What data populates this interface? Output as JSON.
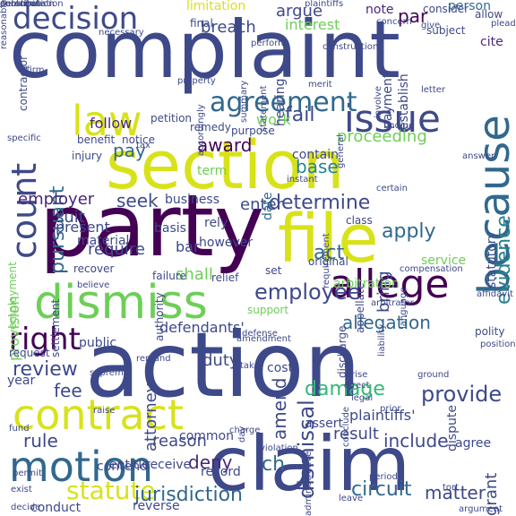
{
  "palette": {
    "dark_purple": "#440154",
    "indigo": "#482878",
    "blue": "#3e4989",
    "slate": "#31688e",
    "teal": "#26828e",
    "green_teal": "#1f9e89",
    "green": "#35b779",
    "lime": "#6ece58",
    "yellow_green": "#b5de2b",
    "yellow": "#d8e219"
  },
  "words": [
    {
      "text": "complaint",
      "color": "#3e4989",
      "rotation": 0
    },
    {
      "text": "action",
      "color": "#3e4989",
      "rotation": 0
    },
    {
      "text": "party",
      "color": "#440154",
      "rotation": 0
    },
    {
      "text": "section",
      "color": "#d8e219",
      "rotation": 0
    },
    {
      "text": "claim",
      "color": "#3e4989",
      "rotation": 0
    },
    {
      "text": "file",
      "color": "#d8e219",
      "rotation": 0
    },
    {
      "text": "because",
      "color": "#31688e",
      "rotation": 270
    },
    {
      "text": "dismiss",
      "color": "#6ece58",
      "rotation": 0
    },
    {
      "text": "contract",
      "color": "#d8e219",
      "rotation": 0
    },
    {
      "text": "allege",
      "color": "#440154",
      "rotation": 0
    },
    {
      "text": "motion",
      "color": "#31688e",
      "rotation": 0
    },
    {
      "text": "issue",
      "color": "#3e4989",
      "rotation": 0
    },
    {
      "text": "law",
      "color": "#d8e219",
      "rotation": 0
    },
    {
      "text": "count",
      "color": "#3e4989",
      "rotation": 270
    },
    {
      "text": "decision",
      "color": "#3e4989",
      "rotation": 0
    },
    {
      "text": "agreement",
      "color": "#31688e",
      "rotation": 0
    },
    {
      "text": "right",
      "color": "#440154",
      "rotation": 0
    },
    {
      "text": "statute",
      "color": "#d8e219",
      "rotation": 0
    },
    {
      "text": "jurisdiction",
      "color": "#31688e",
      "rotation": 0
    },
    {
      "text": "circuit",
      "color": "#31688e",
      "rotation": 0
    },
    {
      "text": "employee",
      "color": "#3e4989",
      "rotation": 0
    },
    {
      "text": "provide",
      "color": "#3e4989",
      "rotation": 0
    },
    {
      "text": "damage",
      "color": "#35b779",
      "rotation": 0
    },
    {
      "text": "dismissal",
      "color": "#3e4989",
      "rotation": 270
    },
    {
      "text": "evidence",
      "color": "#26828e",
      "rotation": 270
    },
    {
      "text": "determine",
      "color": "#3e4989",
      "rotation": 0
    },
    {
      "text": "award",
      "color": "#440154",
      "rotation": 0
    },
    {
      "text": "proceeding",
      "color": "#6ece58",
      "rotation": 0
    },
    {
      "text": "review",
      "color": "#3e4989",
      "rotation": 0
    },
    {
      "text": "apply",
      "color": "#31688e",
      "rotation": 0
    },
    {
      "text": "matter",
      "color": "#3e4989",
      "rotation": 0
    },
    {
      "text": "deny",
      "color": "#482878",
      "rotation": 0
    },
    {
      "text": "fail",
      "color": "#3e4989",
      "rotation": 0
    },
    {
      "text": "pay",
      "color": "#31688e",
      "rotation": 0
    },
    {
      "text": "seek",
      "color": "#3e4989",
      "rotation": 0
    },
    {
      "text": "fee",
      "color": "#3e4989",
      "rotation": 0
    },
    {
      "text": "act",
      "color": "#31688e",
      "rotation": 0
    },
    {
      "text": "base",
      "color": "#26828e",
      "rotation": 0
    },
    {
      "text": "rule",
      "color": "#3e4989",
      "rotation": 0
    },
    {
      "text": "reason",
      "color": "#3e4989",
      "rotation": 0
    },
    {
      "text": "amend",
      "color": "#3e4989",
      "rotation": 270
    },
    {
      "text": "allegation",
      "color": "#31688e",
      "rotation": 0
    },
    {
      "text": "include",
      "color": "#3e4989",
      "rotation": 0
    },
    {
      "text": "require",
      "color": "#3e4989",
      "rotation": 0
    },
    {
      "text": "enter",
      "color": "#3e4989",
      "rotation": 0
    },
    {
      "text": "argue",
      "color": "#3e4989",
      "rotation": 0
    },
    {
      "text": "breach",
      "color": "#3e4989",
      "rotation": 0
    },
    {
      "text": "interest",
      "color": "#6ece58",
      "rotation": 0
    },
    {
      "text": "pursuant",
      "color": "#31688e",
      "rotation": 270
    },
    {
      "text": "employer",
      "color": "#482878",
      "rotation": 0
    },
    {
      "text": "suit",
      "color": "#3e4989",
      "rotation": 0
    },
    {
      "text": "present",
      "color": "#3e4989",
      "rotation": 0
    },
    {
      "text": "bring",
      "color": "#3e4989",
      "rotation": 270
    },
    {
      "text": "shall",
      "color": "#6ece58",
      "rotation": 0
    },
    {
      "text": "ch",
      "color": "#31688e",
      "rotation": 0
    },
    {
      "text": "duty",
      "color": "#3e4989",
      "rotation": 0
    },
    {
      "text": "attorney",
      "color": "#3e4989",
      "rotation": 270
    },
    {
      "text": "result",
      "color": "#3e4989",
      "rotation": 0
    },
    {
      "text": "follow",
      "color": "#482878",
      "rotation": 0
    },
    {
      "text": "term",
      "color": "#6ece58",
      "rotation": 0
    },
    {
      "text": "work",
      "color": "#6ece58",
      "rotation": 0
    },
    {
      "text": "note",
      "color": "#482878",
      "rotation": 0
    },
    {
      "text": "par",
      "color": "#440154",
      "rotation": 0
    },
    {
      "text": "person",
      "color": "#31688e",
      "rotation": 0
    },
    {
      "text": "limitation",
      "color": "#d8e219",
      "rotation": 0
    },
    {
      "text": "provision",
      "color": "#6ece58",
      "rotation": 270
    },
    {
      "text": "grant",
      "color": "#3e4989",
      "rotation": 270
    },
    {
      "text": "employment",
      "color": "#6ece58",
      "rotation": 270
    },
    {
      "text": "hearing",
      "color": "#3e4989",
      "rotation": 270
    },
    {
      "text": "contain",
      "color": "#3e4989",
      "rotation": 0
    },
    {
      "text": "date",
      "color": "#31688e",
      "rotation": 270
    },
    {
      "text": "arbitration",
      "color": "#6ece58",
      "rotation": 0
    },
    {
      "text": "defendants'",
      "color": "#3e4989",
      "rotation": 0
    },
    {
      "text": "plaintiffs'",
      "color": "#3e4989",
      "rotation": 0
    },
    {
      "text": "conduct",
      "color": "#3e4989",
      "rotation": 0
    },
    {
      "text": "reverse",
      "color": "#3e4989",
      "rotation": 0
    },
    {
      "text": "agree",
      "color": "#3e4989",
      "rotation": 0
    },
    {
      "text": "cite",
      "color": "#482878",
      "rotation": 0
    },
    {
      "text": "payment",
      "color": "#3e4989",
      "rotation": 270
    },
    {
      "text": "establish",
      "color": "#3e4989",
      "rotation": 270
    },
    {
      "text": "statutory",
      "color": "#3e4989",
      "rotation": 270
    },
    {
      "text": "dispute",
      "color": "#3e4989",
      "rotation": 270
    },
    {
      "text": "assert",
      "color": "#3e4989",
      "rotation": 0
    },
    {
      "text": "entitle",
      "color": "#3e4989",
      "rotation": 0
    },
    {
      "text": "receive",
      "color": "#3e4989",
      "rotation": 0
    },
    {
      "text": "record",
      "color": "#3e4989",
      "rotation": 0
    },
    {
      "text": "contend",
      "color": "#3e4989",
      "rotation": 0
    },
    {
      "text": "common",
      "color": "#3e4989",
      "rotation": 0
    },
    {
      "text": "cost",
      "color": "#3e4989",
      "rotation": 0
    },
    {
      "text": "bar",
      "color": "#3e4989",
      "rotation": 0
    },
    {
      "text": "basis",
      "color": "#3e4989",
      "rotation": 0
    },
    {
      "text": "rely",
      "color": "#3e4989",
      "rotation": 0
    },
    {
      "text": "however",
      "color": "#3e4989",
      "rotation": 0
    },
    {
      "text": "failure",
      "color": "#3e4989",
      "rotation": 0
    },
    {
      "text": "relief",
      "color": "#3e4989",
      "rotation": 0
    },
    {
      "text": "set",
      "color": "#3e4989",
      "rotation": 0
    },
    {
      "text": "support",
      "color": "#6ece58",
      "rotation": 0
    },
    {
      "text": "request",
      "color": "#3e4989",
      "rotation": 0
    },
    {
      "text": "public",
      "color": "#3e4989",
      "rotation": 0
    },
    {
      "text": "year",
      "color": "#3e4989",
      "rotation": 0
    },
    {
      "text": "final",
      "color": "#3e4989",
      "rotation": 0
    },
    {
      "text": "benefit",
      "color": "#3e4989",
      "rotation": 0
    },
    {
      "text": "notice",
      "color": "#3e4989",
      "rotation": 0
    },
    {
      "text": "purpose",
      "color": "#3e4989",
      "rotation": 0
    },
    {
      "text": "remedy",
      "color": "#3e4989",
      "rotation": 0
    },
    {
      "text": "petition",
      "color": "#3e4989",
      "rotation": 0
    },
    {
      "text": "injury",
      "color": "#3e4989",
      "rotation": 0
    },
    {
      "text": "business",
      "color": "#3e4989",
      "rotation": 0
    },
    {
      "text": "material",
      "color": "#3e4989",
      "rotation": 0
    },
    {
      "text": "service",
      "color": "#6ece58",
      "rotation": 0
    },
    {
      "text": "class",
      "color": "#3e4989",
      "rotation": 0
    },
    {
      "text": "original",
      "color": "#3e4989",
      "rotation": 0
    },
    {
      "text": "discharge",
      "color": "#3e4989",
      "rotation": 270
    },
    {
      "text": "appellate",
      "color": "#3e4989",
      "rotation": 270
    },
    {
      "text": "recover",
      "color": "#3e4989",
      "rotation": 0
    },
    {
      "text": "settlement",
      "color": "#3e4989",
      "rotation": 270
    },
    {
      "text": "authority",
      "color": "#3e4989",
      "rotation": 270
    },
    {
      "text": "consider",
      "color": "#3e4989",
      "rotation": 0
    },
    {
      "text": "allow",
      "color": "#3e4989",
      "rotation": 0
    },
    {
      "text": "subject",
      "color": "#3e4989",
      "rotation": 0
    },
    {
      "text": "give",
      "color": "#3e4989",
      "rotation": 0
    },
    {
      "text": "plead",
      "color": "#3e4989",
      "rotation": 0
    },
    {
      "text": "answer",
      "color": "#3e4989",
      "rotation": 0
    },
    {
      "text": "construction",
      "color": "#3e4989",
      "rotation": 0
    },
    {
      "text": "merit",
      "color": "#3e4989",
      "rotation": 0
    },
    {
      "text": "involve",
      "color": "#3e4989",
      "rotation": 270
    },
    {
      "text": "statement",
      "color": "#3e4989",
      "rotation": 270
    },
    {
      "text": "summary",
      "color": "#3e4989",
      "rotation": 270
    },
    {
      "text": "accordingly",
      "color": "#3e4989",
      "rotation": 270
    },
    {
      "text": "contractor",
      "color": "#3e4989",
      "rotation": 270
    },
    {
      "text": "affirm",
      "color": "#3e4989",
      "rotation": 0
    },
    {
      "text": "letter",
      "color": "#3e4989",
      "rotation": 0
    },
    {
      "text": "general",
      "color": "#3e4989",
      "rotation": 270
    },
    {
      "text": "certain",
      "color": "#3e4989",
      "rotation": 0
    },
    {
      "text": "instant",
      "color": "#3e4989",
      "rotation": 0
    },
    {
      "text": "tax",
      "color": "#3e4989",
      "rotation": 0
    },
    {
      "text": "property",
      "color": "#3e4989",
      "rotation": 0
    },
    {
      "text": "requirement",
      "color": "#3e4989",
      "rotation": 270
    },
    {
      "text": "affidavit",
      "color": "#3e4989",
      "rotation": 0
    },
    {
      "text": "language",
      "color": "#3e4989",
      "rotation": 270
    },
    {
      "text": "compensation",
      "color": "#3e4989",
      "rotation": 0
    },
    {
      "text": "arbitrator",
      "color": "#3e4989",
      "rotation": 0
    },
    {
      "text": "defense",
      "color": "#3e4989",
      "rotation": 0
    },
    {
      "text": "remand",
      "color": "#3e4989",
      "rotation": 0
    },
    {
      "text": "supreme",
      "color": "#3e4989",
      "rotation": 0
    },
    {
      "text": "raise",
      "color": "#3e4989",
      "rotation": 0
    },
    {
      "text": "charge",
      "color": "#3e4989",
      "rotation": 0
    },
    {
      "text": "amendment",
      "color": "#3e4989",
      "rotation": 0
    },
    {
      "text": "take",
      "color": "#3e4989",
      "rotation": 0
    },
    {
      "text": "arise",
      "color": "#3e4989",
      "rotation": 0
    },
    {
      "text": "direct",
      "color": "#3e4989",
      "rotation": 0
    },
    {
      "text": "legal",
      "color": "#3e4989",
      "rotation": 0
    },
    {
      "text": "prior",
      "color": "#3e4989",
      "rotation": 0
    },
    {
      "text": "conclude",
      "color": "#3e4989",
      "rotation": 270
    },
    {
      "text": "ground",
      "color": "#3e4989",
      "rotation": 0
    },
    {
      "text": "polity",
      "color": "#3e4989",
      "rotation": 0
    },
    {
      "text": "position",
      "color": "#3e4989",
      "rotation": 0
    },
    {
      "text": "liability",
      "color": "#3e4989",
      "rotation": 270
    },
    {
      "text": "day",
      "color": "#3e4989",
      "rotation": 270
    },
    {
      "text": "violation",
      "color": "#3e4989",
      "rotation": 0
    },
    {
      "text": "administrative",
      "color": "#3e4989",
      "rotation": 270
    },
    {
      "text": "leave",
      "color": "#3e4989",
      "rotation": 0
    },
    {
      "text": "period",
      "color": "#3e4989",
      "rotation": 0
    },
    {
      "text": "tort",
      "color": "#3e4989",
      "rotation": 0
    },
    {
      "text": "argument",
      "color": "#3e4989",
      "rotation": 0
    },
    {
      "text": "permit",
      "color": "#3e4989",
      "rotation": 0
    },
    {
      "text": "exist",
      "color": "#3e4989",
      "rotation": 0
    },
    {
      "text": "decide",
      "color": "#3e4989",
      "rotation": 0
    },
    {
      "text": "fund",
      "color": "#3e4989",
      "rotation": 0
    },
    {
      "text": "believe",
      "color": "#3e4989",
      "rotation": 0
    },
    {
      "text": "finding",
      "color": "#3e4989",
      "rotation": 0
    },
    {
      "text": "concern",
      "color": "#3e4989",
      "rotation": 0
    },
    {
      "text": "perform",
      "color": "#3e4989",
      "rotation": 0
    },
    {
      "text": "necessary",
      "color": "#3e4989",
      "rotation": 0
    },
    {
      "text": "specific",
      "color": "#3e4989",
      "rotation": 0
    },
    {
      "text": "plaintiffs",
      "color": "#3e4989",
      "rotation": 0
    },
    {
      "text": "personal",
      "color": "#3e4989",
      "rotation": 0
    },
    {
      "text": "determination",
      "color": "#3e4989",
      "rotation": 0
    },
    {
      "text": "contribution",
      "color": "#3e4989",
      "rotation": 0
    },
    {
      "text": "reasonable",
      "color": "#3e4989",
      "rotation": 270
    },
    {
      "text": "constitute",
      "color": "#3e4989",
      "rotation": 0
    }
  ]
}
